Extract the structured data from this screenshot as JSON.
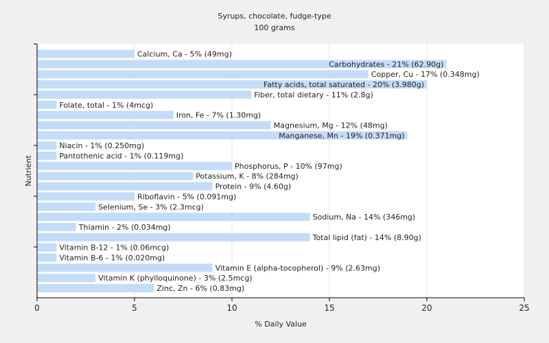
{
  "chart_data": {
    "type": "bar",
    "orientation": "horizontal",
    "title": "Syrups, chocolate, fudge-type",
    "subtitle": "100 grams",
    "xlabel": "% Daily Value",
    "ylabel": "Nutrient",
    "xlim": [
      0,
      25
    ],
    "xticks": [
      "0",
      "5",
      "10",
      "15",
      "20",
      "25"
    ],
    "grid": true,
    "bar_color": "#c4dcf8",
    "categories": [
      "Calcium, Ca",
      "Carbohydrates",
      "Copper, Cu",
      "Fatty acids, total saturated",
      "Fiber, total dietary",
      "Folate, total",
      "Iron, Fe",
      "Magnesium, Mg",
      "Manganese, Mn",
      "Niacin",
      "Pantothenic acid",
      "Phosphorus, P",
      "Potassium, K",
      "Protein",
      "Riboflavin",
      "Selenium, Se",
      "Sodium, Na",
      "Thiamin",
      "Total lipid (fat)",
      "Vitamin B-12",
      "Vitamin B-6",
      "Vitamin E (alpha-tocopherol)",
      "Vitamin K (phylloquinone)",
      "Zinc, Zn"
    ],
    "values": [
      5,
      21,
      17,
      20,
      11,
      1,
      7,
      12,
      19,
      1,
      1,
      10,
      8,
      9,
      5,
      3,
      14,
      2,
      14,
      1,
      1,
      9,
      3,
      6
    ],
    "data_labels": [
      "Calcium, Ca - 5% (49mg)",
      "Carbohydrates - 21% (62.90g)",
      "Copper, Cu - 17% (0.348mg)",
      "Fatty acids, total saturated - 20% (3.980g)",
      "Fiber, total dietary - 11% (2.8g)",
      "Folate, total - 1% (4mcg)",
      "Iron, Fe - 7% (1.30mg)",
      "Magnesium, Mg - 12% (48mg)",
      "Manganese, Mn - 19% (0.371mg)",
      "Niacin - 1% (0.250mg)",
      "Pantothenic acid - 1% (0.119mg)",
      "Phosphorus, P - 10% (97mg)",
      "Potassium, K - 8% (284mg)",
      "Protein - 9% (4.60g)",
      "Riboflavin - 5% (0.091mg)",
      "Selenium, Se - 3% (2.3mcg)",
      "Sodium, Na - 14% (346mg)",
      "Thiamin - 2% (0.034mg)",
      "Total lipid (fat) - 14% (8.90g)",
      "Vitamin B-12 - 1% (0.06mcg)",
      "Vitamin B-6 - 1% (0.020mg)",
      "Vitamin E (alpha-tocopherol) - 9% (2.63mg)",
      "Vitamin K (phylloquinone) - 3% (2.5mcg)",
      "Zinc, Zn - 6% (0.83mg)"
    ]
  }
}
